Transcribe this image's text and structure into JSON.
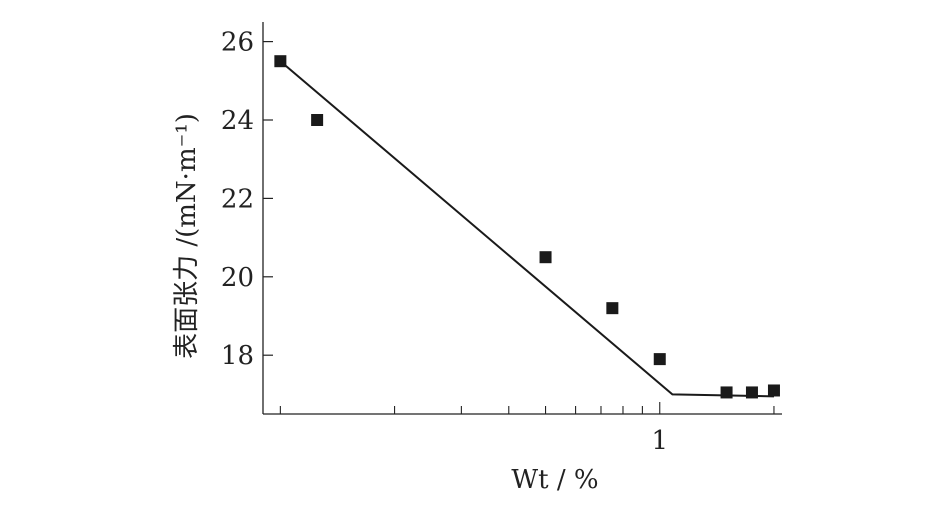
{
  "chart_data": {
    "type": "scatter",
    "x_scale": "log",
    "xlabel": "Wt / %",
    "ylabel": "表面张力 /(mN·m⁻¹)",
    "xlim": [
      0.09,
      2.1
    ],
    "ylim": [
      16.5,
      26.5
    ],
    "x_ticks": [
      0.1,
      0.2,
      0.3,
      0.4,
      0.5,
      0.6,
      0.7,
      0.8,
      0.9,
      1,
      2
    ],
    "x_tick_labels": [
      {
        "value": 1,
        "text": "1"
      }
    ],
    "y_ticks": [
      18,
      20,
      22,
      24,
      26
    ],
    "y_tick_labels": [
      "18",
      "20",
      "22",
      "24",
      "26"
    ],
    "grid": false,
    "series": [
      {
        "marker": "square",
        "color": "#1a1a1a",
        "x": [
          0.1,
          0.125,
          0.5,
          0.75,
          1.0,
          1.5,
          1.75,
          2.0
        ],
        "y": [
          25.5,
          24.0,
          20.5,
          19.2,
          17.9,
          17.05,
          17.05,
          17.1
        ]
      }
    ],
    "fit_line": {
      "color": "#1a1a1a",
      "x": [
        0.1,
        1.08,
        2.0
      ],
      "y": [
        25.5,
        17.0,
        16.95
      ]
    }
  }
}
